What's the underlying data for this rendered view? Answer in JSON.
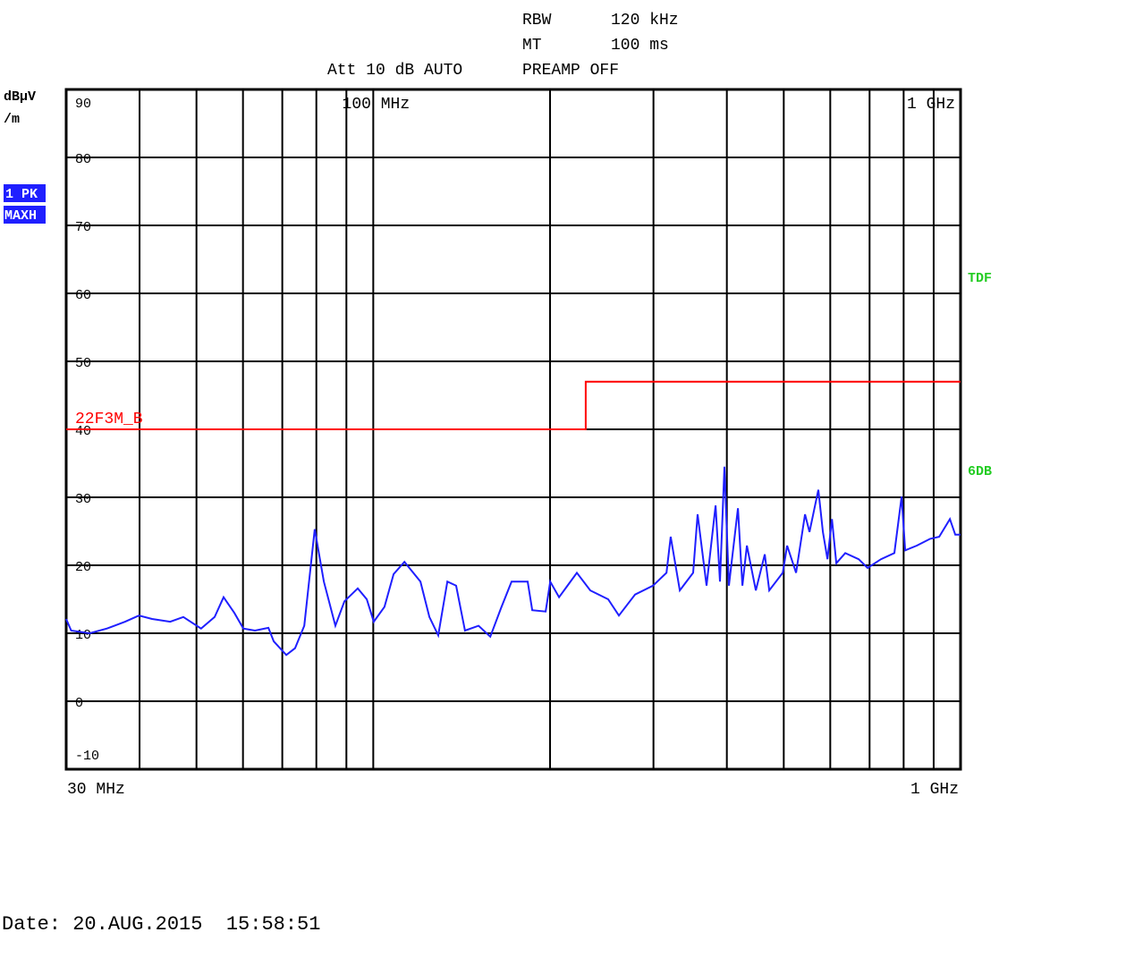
{
  "chart_data": {
    "type": "line",
    "settings": [
      {
        "name": "RBW",
        "value": "120 kHz"
      },
      {
        "name": "MT",
        "value": "100 ms"
      }
    ],
    "attenuation": "Att 10 dB AUTO",
    "preamp": "PREAMP OFF",
    "y_label": "dBµV",
    "y_label_unit": "/m",
    "trace_labels": [
      "1 PK",
      "MAXH"
    ],
    "side_labels": [
      {
        "text": "TDF",
        "color": "#22cc22"
      },
      {
        "text": "6DB",
        "color": "#22cc22"
      }
    ],
    "log_x": true,
    "xlim": [
      30,
      1000
    ],
    "ylim": [
      -10,
      90
    ],
    "yticks": [
      -10,
      0,
      10,
      20,
      30,
      40,
      50,
      60,
      70,
      80,
      90
    ],
    "xgrid": [
      40,
      50,
      60,
      70,
      80,
      90,
      100,
      200,
      300,
      400,
      500,
      600,
      700,
      800,
      900
    ],
    "xticks": [
      {
        "value": 100,
        "label": "100 MHz"
      },
      {
        "value": 1000,
        "label": "1 GHz"
      }
    ],
    "start_label": "30 MHz",
    "stop_label": "1 GHz",
    "grid": true,
    "series": [
      {
        "color": "#1f1fff",
        "x": [
          30.0,
          30.6,
          32.9,
          35.2,
          37.8,
          39.9,
          42.0,
          45.1,
          47.5,
          50.9,
          53.7,
          55.6,
          58.0,
          60.1,
          62.9,
          66.3,
          67.7,
          71.1,
          73.6,
          76.3,
          79.5,
          82.4,
          86.2,
          89.3,
          94.1,
          97.5,
          100.2,
          104.5,
          108.3,
          113.0,
          120.3,
          124.6,
          129.0,
          133.7,
          138.4,
          143.3,
          151.1,
          158.2,
          165.0,
          172.0,
          183.2,
          186.5,
          196.6,
          200.1,
          207.2,
          222.2,
          234.2,
          251.2,
          262.0,
          279.1,
          299.4,
          315.7,
          321.0,
          332.6,
          350.5,
          356.7,
          369.4,
          382.7,
          389.4,
          396.2,
          403.2,
          417.8,
          425.2,
          432.7,
          448.2,
          464.2,
          472.4,
          498.0,
          506.7,
          524.8,
          543.5,
          553.1,
          572.7,
          583.0,
          593.4,
          603.9,
          614.5,
          636.4,
          670.8,
          694.6,
          732.0,
          771.5,
          793.6,
          804.8,
          842.5,
          887.7,
          919.5,
          959.2,
          979.6,
          1000
        ],
        "values": [
          12.1,
          10.4,
          10.0,
          10.7,
          11.7,
          12.6,
          12.1,
          11.7,
          12.4,
          10.7,
          12.4,
          15.3,
          13.0,
          10.7,
          10.4,
          10.8,
          8.8,
          6.8,
          7.8,
          11.1,
          25.3,
          17.6,
          11.1,
          14.7,
          16.6,
          15.0,
          11.7,
          13.9,
          18.7,
          20.5,
          17.6,
          12.4,
          9.7,
          17.6,
          17.0,
          10.4,
          11.1,
          9.5,
          13.7,
          17.6,
          17.6,
          13.4,
          13.2,
          17.6,
          15.3,
          18.9,
          16.3,
          15.0,
          12.6,
          15.7,
          17.0,
          18.9,
          24.2,
          16.3,
          18.9,
          27.5,
          17.0,
          28.8,
          17.6,
          34.5,
          17.0,
          28.4,
          17.0,
          22.9,
          16.3,
          21.6,
          16.3,
          18.9,
          22.9,
          18.9,
          27.5,
          24.9,
          31.1,
          24.9,
          20.9,
          26.8,
          20.3,
          21.8,
          20.9,
          19.6,
          20.9,
          21.8,
          30.1,
          22.2,
          22.9,
          23.9,
          24.2,
          26.8,
          24.5,
          24.5
        ]
      },
      {
        "name": "22F3M_B",
        "color": "#ff0000",
        "x": [
          30,
          230,
          230,
          1000
        ],
        "values": [
          40,
          40,
          47,
          47
        ]
      }
    ],
    "date": "Date: 20.AUG.2015  15:58:51"
  }
}
